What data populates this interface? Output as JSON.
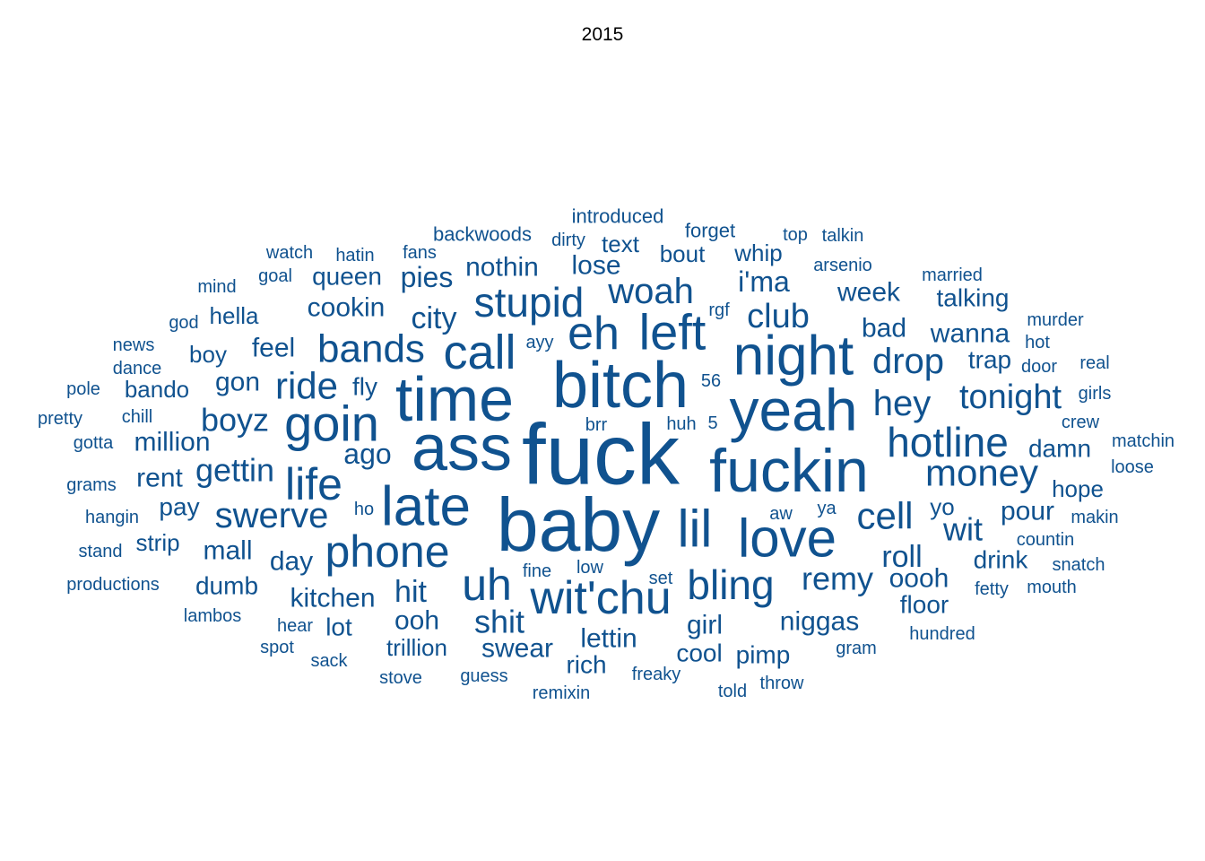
{
  "chart_data": {
    "type": "wordcloud",
    "title": "2015",
    "color": "#10528f",
    "words": [
      {
        "text": "fuck",
        "size": 96
      },
      {
        "text": "ass",
        "size": 72
      },
      {
        "text": "baby",
        "size": 84
      },
      {
        "text": "bitch",
        "size": 72
      },
      {
        "text": "time",
        "size": 70
      },
      {
        "text": "yeah",
        "size": 66
      },
      {
        "text": "fuckin",
        "size": 68
      },
      {
        "text": "night",
        "size": 62
      },
      {
        "text": "late",
        "size": 62
      },
      {
        "text": "love",
        "size": 60
      },
      {
        "text": "left",
        "size": 56
      },
      {
        "text": "goin",
        "size": 56
      },
      {
        "text": "eh",
        "size": 52
      },
      {
        "text": "call",
        "size": 54
      },
      {
        "text": "lil",
        "size": 58
      },
      {
        "text": "wit'chu",
        "size": 52
      },
      {
        "text": "uh",
        "size": 50
      },
      {
        "text": "phone",
        "size": 50
      },
      {
        "text": "life",
        "size": 50
      },
      {
        "text": "hotline",
        "size": 46
      },
      {
        "text": "bling",
        "size": 46
      },
      {
        "text": "stupid",
        "size": 46
      },
      {
        "text": "bands",
        "size": 44
      },
      {
        "text": "money",
        "size": 42
      },
      {
        "text": "cell",
        "size": 42
      },
      {
        "text": "ride",
        "size": 42
      },
      {
        "text": "swerve",
        "size": 40
      },
      {
        "text": "woah",
        "size": 40
      },
      {
        "text": "drop",
        "size": 40
      },
      {
        "text": "hey",
        "size": 40
      },
      {
        "text": "tonight",
        "size": 38
      },
      {
        "text": "club",
        "size": 38
      },
      {
        "text": "remy",
        "size": 36
      },
      {
        "text": "boyz",
        "size": 36
      },
      {
        "text": "gettin",
        "size": 36
      },
      {
        "text": "shit",
        "size": 36
      },
      {
        "text": "wit",
        "size": 36
      },
      {
        "text": "city",
        "size": 34
      },
      {
        "text": "hit",
        "size": 34
      },
      {
        "text": "roll",
        "size": 34
      },
      {
        "text": "i'ma",
        "size": 32
      },
      {
        "text": "ago",
        "size": 32
      },
      {
        "text": "nothin",
        "size": 30
      },
      {
        "text": "pies",
        "size": 32
      },
      {
        "text": "lose",
        "size": 30
      },
      {
        "text": "feel",
        "size": 30
      },
      {
        "text": "cookin",
        "size": 30
      },
      {
        "text": "queen",
        "size": 28
      },
      {
        "text": "week",
        "size": 30
      },
      {
        "text": "wanna",
        "size": 30
      },
      {
        "text": "bad",
        "size": 30
      },
      {
        "text": "gon",
        "size": 30
      },
      {
        "text": "million",
        "size": 30
      },
      {
        "text": "rent",
        "size": 30
      },
      {
        "text": "pay",
        "size": 28
      },
      {
        "text": "mall",
        "size": 30
      },
      {
        "text": "day",
        "size": 30
      },
      {
        "text": "kitchen",
        "size": 30
      },
      {
        "text": "ooh",
        "size": 30
      },
      {
        "text": "swear",
        "size": 30
      },
      {
        "text": "lettin",
        "size": 30
      },
      {
        "text": "girl",
        "size": 30
      },
      {
        "text": "niggas",
        "size": 30
      },
      {
        "text": "oooh",
        "size": 30
      },
      {
        "text": "floor",
        "size": 28
      },
      {
        "text": "pour",
        "size": 30
      },
      {
        "text": "hope",
        "size": 26
      },
      {
        "text": "damn",
        "size": 28
      },
      {
        "text": "drink",
        "size": 28
      },
      {
        "text": "trap",
        "size": 28
      },
      {
        "text": "talking",
        "size": 28
      },
      {
        "text": "dumb",
        "size": 28
      },
      {
        "text": "fly",
        "size": 28
      },
      {
        "text": "hella",
        "size": 26
      },
      {
        "text": "bando",
        "size": 26
      },
      {
        "text": "boy",
        "size": 26
      },
      {
        "text": "strip",
        "size": 26
      },
      {
        "text": "trillion",
        "size": 26
      },
      {
        "text": "rich",
        "size": 28
      },
      {
        "text": "cool",
        "size": 28
      },
      {
        "text": "pimp",
        "size": 28
      },
      {
        "text": "lot",
        "size": 28
      },
      {
        "text": "bout",
        "size": 26
      },
      {
        "text": "whip",
        "size": 26
      },
      {
        "text": "text",
        "size": 26
      },
      {
        "text": "yo",
        "size": 26
      },
      {
        "text": "backwoods",
        "size": 22
      },
      {
        "text": "introduced",
        "size": 22
      },
      {
        "text": "forget",
        "size": 22
      },
      {
        "text": "dirty",
        "size": 20
      },
      {
        "text": "fans",
        "size": 20
      },
      {
        "text": "hatin",
        "size": 20
      },
      {
        "text": "watch",
        "size": 20
      },
      {
        "text": "top",
        "size": 20
      },
      {
        "text": "talkin",
        "size": 20
      },
      {
        "text": "arsenio",
        "size": 20
      },
      {
        "text": "married",
        "size": 20
      },
      {
        "text": "goal",
        "size": 20
      },
      {
        "text": "mind",
        "size": 20
      },
      {
        "text": "god",
        "size": 20
      },
      {
        "text": "rgf",
        "size": 20
      },
      {
        "text": "murder",
        "size": 20
      },
      {
        "text": "news",
        "size": 20
      },
      {
        "text": "ayy",
        "size": 20
      },
      {
        "text": "hot",
        "size": 20
      },
      {
        "text": "dance",
        "size": 20
      },
      {
        "text": "door",
        "size": 20
      },
      {
        "text": "real",
        "size": 20
      },
      {
        "text": "pole",
        "size": 20
      },
      {
        "text": "56",
        "size": 20
      },
      {
        "text": "girls",
        "size": 20
      },
      {
        "text": "pretty",
        "size": 20
      },
      {
        "text": "chill",
        "size": 20
      },
      {
        "text": "brr",
        "size": 20
      },
      {
        "text": "huh",
        "size": 20
      },
      {
        "text": "5",
        "size": 20
      },
      {
        "text": "crew",
        "size": 20
      },
      {
        "text": "gotta",
        "size": 20
      },
      {
        "text": "matchin",
        "size": 20
      },
      {
        "text": "loose",
        "size": 20
      },
      {
        "text": "grams",
        "size": 20
      },
      {
        "text": "ho",
        "size": 20
      },
      {
        "text": "aw",
        "size": 20
      },
      {
        "text": "ya",
        "size": 20
      },
      {
        "text": "hangin",
        "size": 20
      },
      {
        "text": "makin",
        "size": 20
      },
      {
        "text": "countin",
        "size": 20
      },
      {
        "text": "stand",
        "size": 20
      },
      {
        "text": "fine",
        "size": 20
      },
      {
        "text": "low",
        "size": 20
      },
      {
        "text": "set",
        "size": 20
      },
      {
        "text": "snatch",
        "size": 20
      },
      {
        "text": "productions",
        "size": 20
      },
      {
        "text": "fetty",
        "size": 20
      },
      {
        "text": "mouth",
        "size": 20
      },
      {
        "text": "lambos",
        "size": 20
      },
      {
        "text": "hear",
        "size": 20
      },
      {
        "text": "hundred",
        "size": 20
      },
      {
        "text": "spot",
        "size": 20
      },
      {
        "text": "gram",
        "size": 20
      },
      {
        "text": "sack",
        "size": 20
      },
      {
        "text": "stove",
        "size": 20
      },
      {
        "text": "guess",
        "size": 20
      },
      {
        "text": "freaky",
        "size": 20
      },
      {
        "text": "throw",
        "size": 20
      },
      {
        "text": "remixin",
        "size": 20
      },
      {
        "text": "told",
        "size": 20
      }
    ]
  }
}
